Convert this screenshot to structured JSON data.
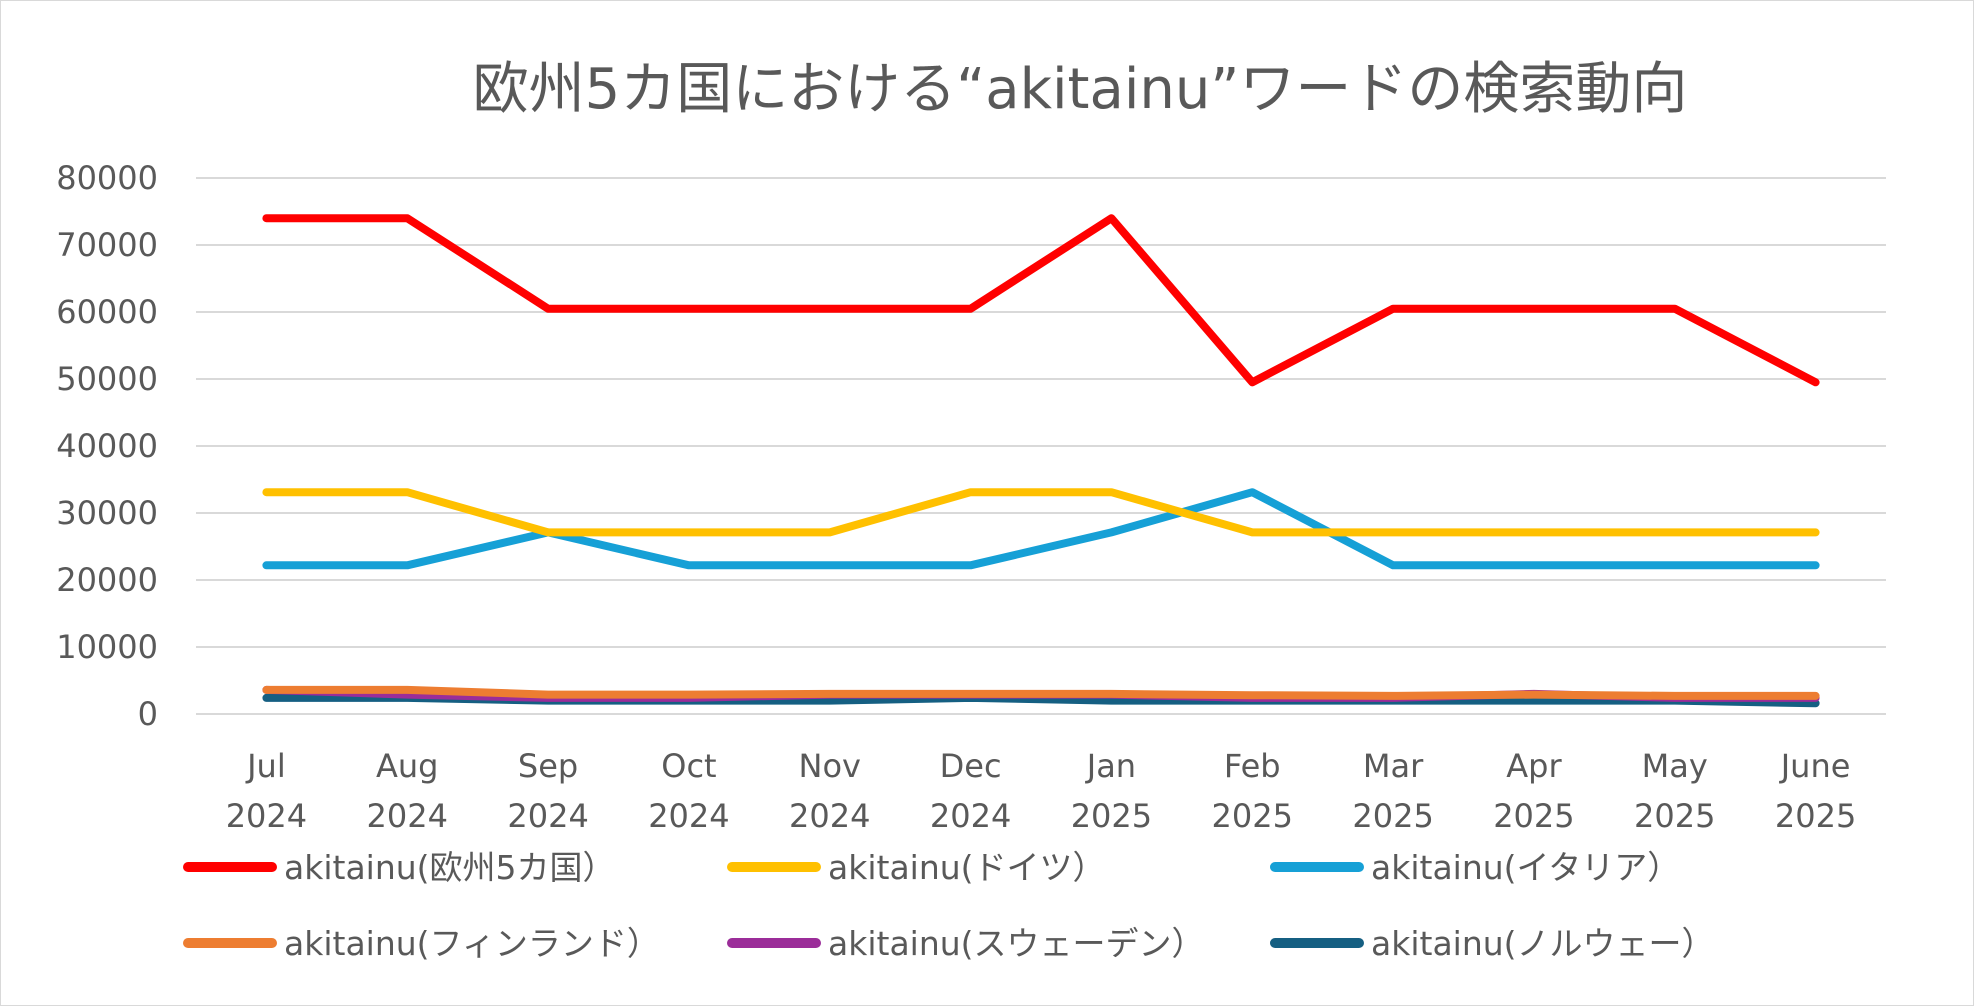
{
  "chart_data": {
    "type": "line",
    "title": "欧州5カ国における“akitainu”ワードの検索動向",
    "xlabel": "",
    "ylabel": "",
    "categories": [
      [
        "Jul",
        "2024"
      ],
      [
        "Aug",
        "2024"
      ],
      [
        "Sep",
        "2024"
      ],
      [
        "Oct",
        "2024"
      ],
      [
        "Nov",
        "2024"
      ],
      [
        "Dec",
        "2024"
      ],
      [
        "Jan",
        "2025"
      ],
      [
        "Feb",
        "2025"
      ],
      [
        "Mar",
        "2025"
      ],
      [
        "Apr",
        "2025"
      ],
      [
        "May",
        "2025"
      ],
      [
        "June",
        "2025"
      ]
    ],
    "ylim": [
      0,
      80000
    ],
    "yticks": [
      0,
      10000,
      20000,
      30000,
      40000,
      50000,
      60000,
      70000,
      80000
    ],
    "grid": true,
    "legend_position": "bottom",
    "series": [
      {
        "name": "akitainu(欧州5カ国）",
        "color": "#ff0000",
        "values": [
          74000,
          74000,
          60500,
          60500,
          60500,
          60500,
          74000,
          49500,
          60500,
          60500,
          60500,
          49500
        ]
      },
      {
        "name": "akitainu(ドイツ）",
        "color": "#ffc000",
        "values": [
          33100,
          33100,
          27100,
          27100,
          27100,
          33100,
          33100,
          27100,
          27100,
          27100,
          27100,
          27100
        ]
      },
      {
        "name": "akitainu(イタリア）",
        "color": "#16a0d6",
        "values": [
          22200,
          22200,
          27100,
          22200,
          22200,
          22200,
          27100,
          33100,
          22200,
          22200,
          22200,
          22200
        ]
      },
      {
        "name": "akitainu(フィンランド）",
        "color": "#ed7d31",
        "values": [
          3600,
          3600,
          2900,
          2900,
          3000,
          3000,
          3000,
          2800,
          2700,
          2900,
          2700,
          2700
        ]
      },
      {
        "name": "akitainu(スウェーデン）",
        "color": "#9b2d99",
        "values": [
          3600,
          2900,
          2400,
          2400,
          2900,
          2900,
          2900,
          2400,
          2400,
          3000,
          2400,
          2400
        ]
      },
      {
        "name": "akitainu(ノルウェー）",
        "color": "#155f82",
        "values": [
          2400,
          2400,
          2000,
          2000,
          2000,
          2400,
          2000,
          2000,
          2000,
          2000,
          2000,
          1600
        ]
      }
    ]
  }
}
